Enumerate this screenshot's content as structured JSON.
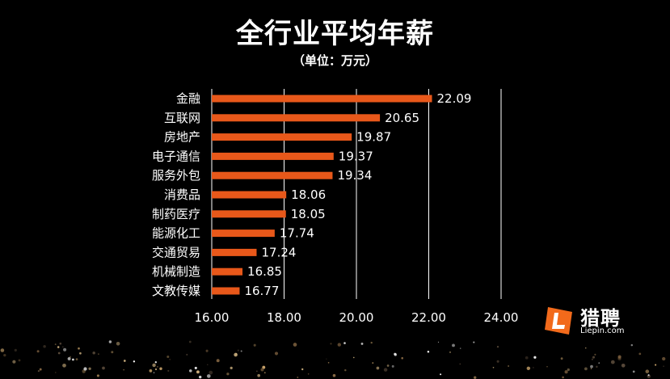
{
  "header": {
    "title": "全行业平均年薪",
    "unit": "（单位：万元）"
  },
  "logo": {
    "name": "猎聘",
    "site": "Liepin.com",
    "accent": "#f26a1b"
  },
  "chart_data": {
    "type": "bar",
    "orientation": "horizontal",
    "title": "全行业平均年薪",
    "subtitle": "（单位：万元）",
    "categories": [
      "金融",
      "互联网",
      "房地产",
      "电子通信",
      "服务外包",
      "消费品",
      "制药医疗",
      "能源化工",
      "交通贸易",
      "机械制造",
      "文教传媒"
    ],
    "values": [
      22.09,
      20.65,
      19.87,
      19.37,
      19.34,
      18.06,
      18.05,
      17.74,
      17.24,
      16.85,
      16.77
    ],
    "value_labels": [
      "22.09",
      "20.65",
      "19.87",
      "19.37",
      "19.34",
      "18.06",
      "18.05",
      "17.74",
      "17.24",
      "16.85",
      "16.77"
    ],
    "xlim": [
      16,
      24
    ],
    "ticks": [
      16,
      18,
      20,
      22,
      24
    ],
    "tick_labels": [
      "16.00",
      "18.00",
      "20.00",
      "22.00",
      "24.00"
    ],
    "grid": true,
    "legend": "none",
    "bar_color": "#e8581a",
    "text_color": "#ffffff",
    "grid_color": "#ffffff"
  }
}
